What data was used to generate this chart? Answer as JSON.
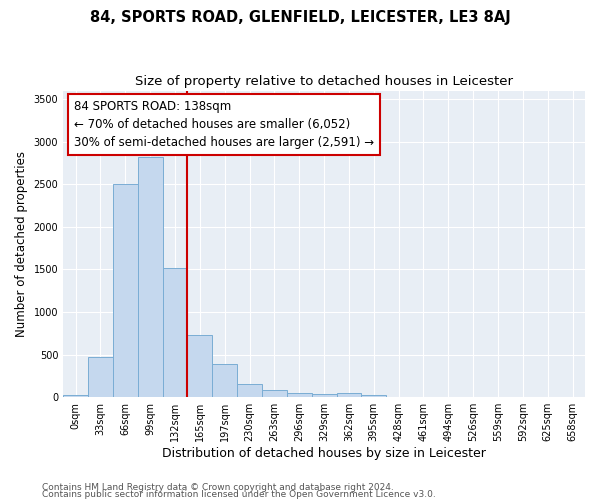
{
  "title": "84, SPORTS ROAD, GLENFIELD, LEICESTER, LE3 8AJ",
  "subtitle": "Size of property relative to detached houses in Leicester",
  "xlabel": "Distribution of detached houses by size in Leicester",
  "ylabel": "Number of detached properties",
  "categories": [
    "0sqm",
    "33sqm",
    "66sqm",
    "99sqm",
    "132sqm",
    "165sqm",
    "197sqm",
    "230sqm",
    "263sqm",
    "296sqm",
    "329sqm",
    "362sqm",
    "395sqm",
    "428sqm",
    "461sqm",
    "494sqm",
    "526sqm",
    "559sqm",
    "592sqm",
    "625sqm",
    "658sqm"
  ],
  "values": [
    30,
    470,
    2500,
    2820,
    1520,
    730,
    390,
    150,
    80,
    55,
    35,
    50,
    25,
    5,
    3,
    2,
    1,
    1,
    1,
    1,
    1
  ],
  "bar_color": "#c5d8ee",
  "bar_edge_color": "#7aadd4",
  "bar_width": 1.0,
  "vline_x": 4.5,
  "vline_color": "#cc0000",
  "annotation_line1": "84 SPORTS ROAD: 138sqm",
  "annotation_line2": "← 70% of detached houses are smaller (6,052)",
  "annotation_line3": "30% of semi-detached houses are larger (2,591) →",
  "annotation_box_color": "#ffffff",
  "annotation_box_edge_color": "#cc0000",
  "ylim": [
    0,
    3600
  ],
  "yticks": [
    0,
    500,
    1000,
    1500,
    2000,
    2500,
    3000,
    3500
  ],
  "bg_color": "#e8eef5",
  "grid_color": "#ffffff",
  "footer_line1": "Contains HM Land Registry data © Crown copyright and database right 2024.",
  "footer_line2": "Contains public sector information licensed under the Open Government Licence v3.0.",
  "title_fontsize": 10.5,
  "subtitle_fontsize": 9.5,
  "xlabel_fontsize": 9,
  "ylabel_fontsize": 8.5,
  "tick_fontsize": 7,
  "annotation_fontsize": 8.5,
  "footer_fontsize": 6.5
}
